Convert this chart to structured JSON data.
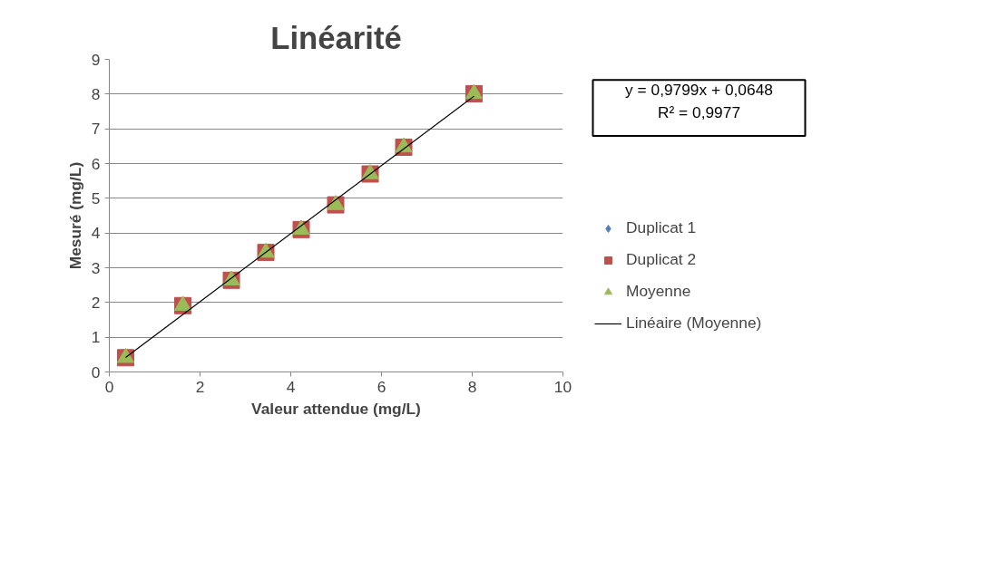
{
  "chart_data": {
    "type": "scatter",
    "title": "Linéarité",
    "xlabel": "Valeur attendue (mg/L)",
    "ylabel": "Mesuré (mg/L)",
    "x": [
      0.36,
      1.62,
      2.69,
      3.45,
      4.23,
      4.99,
      5.75,
      6.49,
      8.04
    ],
    "series": [
      {
        "name": "Duplicat 1",
        "color": "#4f81bd",
        "marker": "diamond",
        "values": [
          null,
          null,
          null,
          null,
          null,
          null,
          null,
          null,
          null
        ]
      },
      {
        "name": "Duplicat 2",
        "color": "#c0504d",
        "marker": "square",
        "values": [
          0.41,
          1.91,
          2.64,
          3.44,
          4.1,
          4.81,
          5.7,
          6.47,
          8.01
        ]
      },
      {
        "name": "Moyenne",
        "color": "#9bbb59",
        "marker": "triangle",
        "values": [
          0.41,
          1.91,
          2.64,
          3.44,
          4.1,
          4.81,
          5.7,
          6.47,
          8.01
        ]
      },
      {
        "name": "Linéaire (Moyenne)",
        "type": "line",
        "color": "#000000",
        "marker": "none",
        "x": [
          0.36,
          8.04
        ],
        "values": [
          0.42,
          7.94
        ]
      }
    ],
    "annotations": [
      "y = 0,9799x + 0,0648",
      "R² = 0,9977"
    ],
    "xlim": [
      0,
      10
    ],
    "ylim": [
      0,
      9
    ],
    "xticks": [
      0,
      2,
      4,
      6,
      8,
      10
    ],
    "yticks": [
      0,
      1,
      2,
      3,
      4,
      5,
      6,
      7,
      8,
      9
    ],
    "grid": "y",
    "legend": "right"
  }
}
